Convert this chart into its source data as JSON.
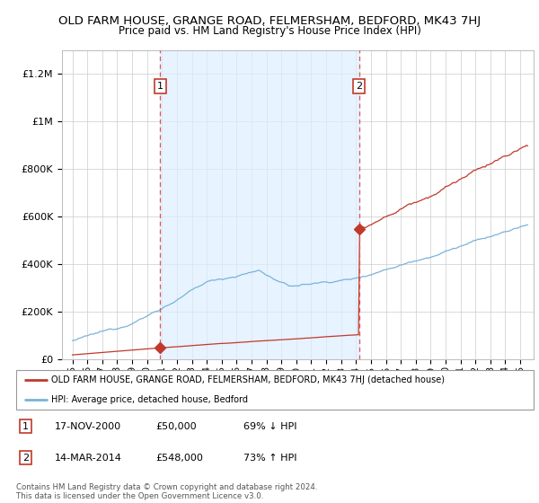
{
  "title": "OLD FARM HOUSE, GRANGE ROAD, FELMERSHAM, BEDFORD, MK43 7HJ",
  "subtitle": "Price paid vs. HM Land Registry's House Price Index (HPI)",
  "title_fontsize": 9.5,
  "subtitle_fontsize": 8.5,
  "ylim": [
    0,
    1300000
  ],
  "ytick_values": [
    0,
    200000,
    400000,
    600000,
    800000,
    1000000,
    1200000
  ],
  "ytick_labels": [
    "£0",
    "£200K",
    "£400K",
    "£600K",
    "£800K",
    "£1M",
    "£1.2M"
  ],
  "hpi_color": "#7ab3d9",
  "price_color": "#c0392b",
  "grid_color": "#cccccc",
  "sale1_date": 2000.88,
  "sale1_price": 50000,
  "sale2_date": 2014.21,
  "sale2_price": 548000,
  "vline_color": "#e05555",
  "legend_label_red": "OLD FARM HOUSE, GRANGE ROAD, FELMERSHAM, BEDFORD, MK43 7HJ (detached house)",
  "legend_label_blue": "HPI: Average price, detached house, Bedford",
  "footer_text": "Contains HM Land Registry data © Crown copyright and database right 2024.\nThis data is licensed under the Open Government Licence v3.0.",
  "table_rows": [
    {
      "num": "1",
      "date": "17-NOV-2000",
      "price": "£50,000",
      "hpi": "69% ↓ HPI"
    },
    {
      "num": "2",
      "date": "14-MAR-2014",
      "price": "£548,000",
      "hpi": "73% ↑ HPI"
    }
  ]
}
